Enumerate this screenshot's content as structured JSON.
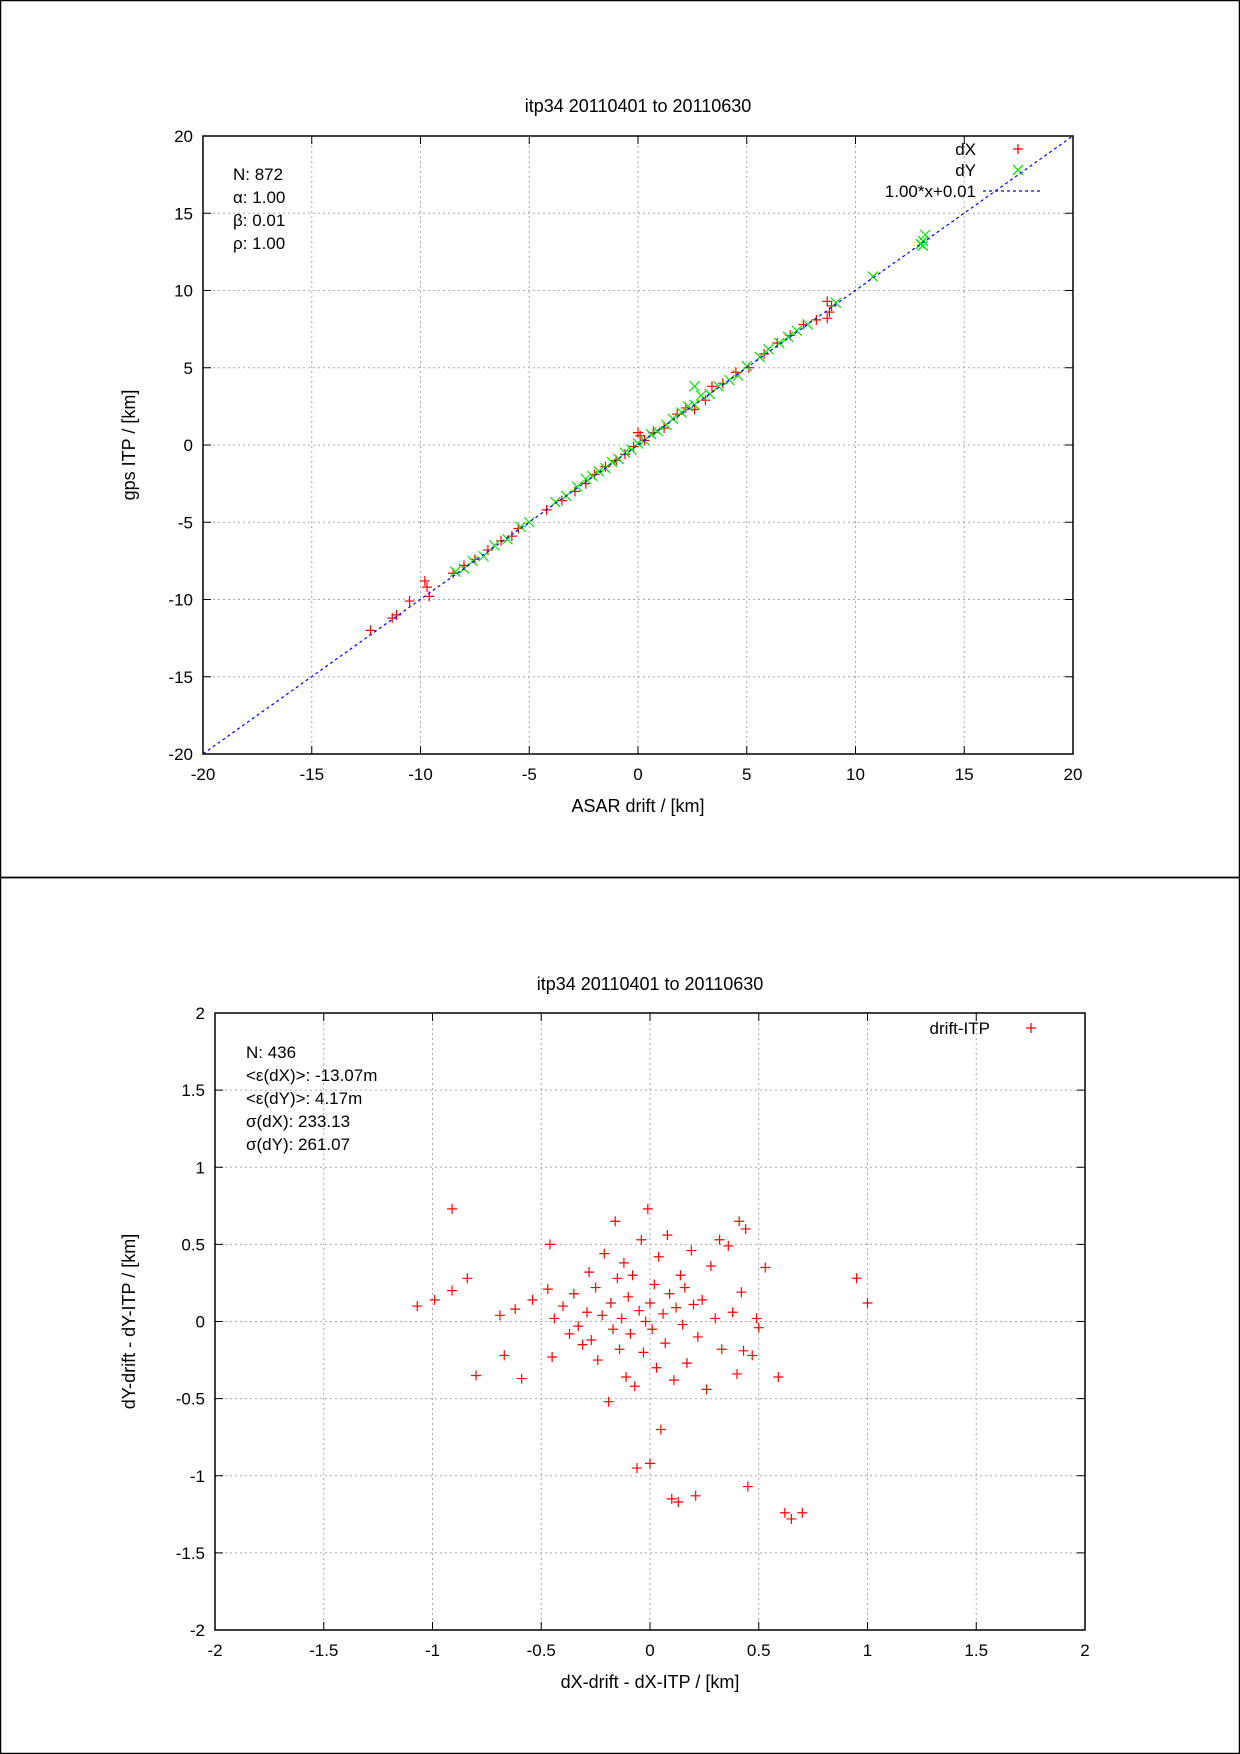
{
  "chart_data": [
    {
      "type": "scatter",
      "title": "itp34 20110401 to 20110630",
      "xlabel": "ASAR drift / [km]",
      "ylabel": "gps ITP / [km]",
      "xlim": [
        -20,
        20
      ],
      "ylim": [
        -20,
        20
      ],
      "xticks": [
        "-20",
        "-15",
        "-10",
        "-5",
        "0",
        "5",
        "10",
        "15",
        "20"
      ],
      "yticks": [
        "20",
        "15",
        "10",
        "5",
        "0",
        "-5",
        "-10",
        "-15",
        "-20"
      ],
      "grid": true,
      "legend_position": "top-right",
      "stats": [
        "N: 872",
        "α: 1.00",
        "β: 0.01",
        "ρ: 1.00"
      ],
      "series": [
        {
          "name": "dX",
          "marker": "+",
          "color": "#ff0000",
          "points": [
            [
              -12.3,
              -12.0
            ],
            [
              -11.3,
              -11.2
            ],
            [
              -11.1,
              -11.0
            ],
            [
              -10.5,
              -10.1
            ],
            [
              -9.8,
              -8.8
            ],
            [
              -9.7,
              -9.2
            ],
            [
              -9.6,
              -9.8
            ],
            [
              -8.5,
              -8.3
            ],
            [
              -8.0,
              -7.8
            ],
            [
              -7.5,
              -7.4
            ],
            [
              -6.9,
              -6.8
            ],
            [
              -6.3,
              -6.2
            ],
            [
              -5.8,
              -5.9
            ],
            [
              -5.5,
              -5.4
            ],
            [
              -4.2,
              -4.2
            ],
            [
              -3.5,
              -3.6
            ],
            [
              -2.9,
              -3.0
            ],
            [
              -2.4,
              -2.5
            ],
            [
              -2.0,
              -1.9
            ],
            [
              -1.5,
              -1.4
            ],
            [
              -1.0,
              -1.0
            ],
            [
              -0.6,
              -0.6
            ],
            [
              -0.2,
              -0.1
            ],
            [
              0.0,
              0.8
            ],
            [
              0.1,
              0.6
            ],
            [
              0.3,
              0.3
            ],
            [
              0.7,
              0.8
            ],
            [
              1.2,
              1.1
            ],
            [
              1.8,
              2.0
            ],
            [
              2.2,
              2.4
            ],
            [
              2.6,
              2.3
            ],
            [
              3.1,
              2.9
            ],
            [
              3.4,
              3.8
            ],
            [
              3.9,
              4.0
            ],
            [
              4.5,
              4.7
            ],
            [
              5.1,
              5.0
            ],
            [
              5.8,
              5.9
            ],
            [
              6.4,
              6.6
            ],
            [
              7.0,
              7.1
            ],
            [
              7.6,
              7.8
            ],
            [
              8.2,
              8.1
            ],
            [
              8.7,
              9.3
            ],
            [
              8.8,
              8.6
            ],
            [
              8.7,
              8.2
            ],
            [
              8.9,
              9.0
            ]
          ]
        },
        {
          "name": "dY",
          "marker": "x",
          "color": "#00e600",
          "points": [
            [
              -8.4,
              -8.2
            ],
            [
              -8.0,
              -8.0
            ],
            [
              -7.6,
              -7.5
            ],
            [
              -7.1,
              -7.2
            ],
            [
              -6.6,
              -6.5
            ],
            [
              -6.0,
              -6.1
            ],
            [
              -5.4,
              -5.3
            ],
            [
              -5.0,
              -5.0
            ],
            [
              -3.8,
              -3.7
            ],
            [
              -3.3,
              -3.3
            ],
            [
              -2.8,
              -2.7
            ],
            [
              -2.4,
              -2.2
            ],
            [
              -2.1,
              -2.0
            ],
            [
              -1.8,
              -1.7
            ],
            [
              -1.5,
              -1.5
            ],
            [
              -1.2,
              -1.1
            ],
            [
              -0.9,
              -0.9
            ],
            [
              -0.6,
              -0.5
            ],
            [
              -0.3,
              -0.3
            ],
            [
              0.0,
              0.1
            ],
            [
              0.3,
              0.3
            ],
            [
              0.6,
              0.7
            ],
            [
              0.9,
              0.9
            ],
            [
              1.3,
              1.3
            ],
            [
              1.6,
              1.7
            ],
            [
              2.0,
              2.1
            ],
            [
              2.3,
              2.5
            ],
            [
              2.6,
              3.8
            ],
            [
              2.6,
              2.6
            ],
            [
              2.9,
              3.2
            ],
            [
              3.3,
              3.3
            ],
            [
              3.7,
              3.8
            ],
            [
              4.2,
              4.2
            ],
            [
              4.6,
              4.5
            ],
            [
              5.0,
              5.1
            ],
            [
              5.6,
              5.7
            ],
            [
              6.0,
              6.2
            ],
            [
              6.5,
              6.6
            ],
            [
              6.9,
              7.0
            ],
            [
              7.3,
              7.4
            ],
            [
              7.8,
              7.8
            ],
            [
              9.1,
              9.2
            ],
            [
              10.8,
              10.9
            ],
            [
              13.0,
              13.0
            ],
            [
              13.1,
              13.2
            ],
            [
              13.2,
              13.6
            ],
            [
              13.1,
              12.9
            ]
          ]
        },
        {
          "name": "1.00*x+0.01",
          "type": "line",
          "style": "dashed",
          "color": "#0000ff",
          "x": [
            -20,
            20
          ],
          "y": [
            -19.99,
            20.01
          ]
        }
      ]
    },
    {
      "type": "scatter",
      "title": "itp34 20110401 to 20110630",
      "xlabel": "dX-drift - dX-ITP / [km]",
      "ylabel": "dY-drift - dY-ITP / [km]",
      "xlim": [
        -2,
        2
      ],
      "ylim": [
        -2,
        2
      ],
      "xticks": [
        "-2",
        "-1.5",
        "-1",
        "-0.5",
        "0",
        "0.5",
        "1",
        "1.5",
        "2"
      ],
      "yticks": [
        "2",
        "1.5",
        "1",
        "0.5",
        "0",
        "-0.5",
        "-1",
        "-1.5",
        "-2"
      ],
      "grid": true,
      "legend_position": "top-right",
      "stats": [
        "N: 436",
        "<ε(dX)>:  -13.07m",
        "<ε(dY)>: 4.17m",
        "σ(dX):  233.13",
        "σ(dY):  261.07"
      ],
      "series": [
        {
          "name": "drift-ITP",
          "marker": "+",
          "color": "#ff0000",
          "points": [
            [
              -1.07,
              0.1
            ],
            [
              -0.99,
              0.14
            ],
            [
              -0.91,
              0.73
            ],
            [
              -0.91,
              0.2
            ],
            [
              -0.84,
              0.28
            ],
            [
              -0.8,
              -0.35
            ],
            [
              -0.69,
              0.04
            ],
            [
              -0.67,
              -0.22
            ],
            [
              -0.62,
              0.08
            ],
            [
              -0.59,
              -0.37
            ],
            [
              -0.54,
              0.14
            ],
            [
              -0.47,
              0.21
            ],
            [
              -0.46,
              0.5
            ],
            [
              -0.45,
              -0.23
            ],
            [
              -0.44,
              0.02
            ],
            [
              -0.4,
              0.1
            ],
            [
              -0.37,
              -0.08
            ],
            [
              -0.35,
              0.18
            ],
            [
              -0.33,
              -0.03
            ],
            [
              -0.31,
              -0.15
            ],
            [
              -0.29,
              0.06
            ],
            [
              -0.28,
              0.32
            ],
            [
              -0.27,
              -0.12
            ],
            [
              -0.25,
              0.22
            ],
            [
              -0.24,
              -0.25
            ],
            [
              -0.22,
              0.04
            ],
            [
              -0.21,
              0.44
            ],
            [
              -0.19,
              -0.52
            ],
            [
              -0.18,
              0.12
            ],
            [
              -0.17,
              -0.05
            ],
            [
              -0.16,
              0.65
            ],
            [
              -0.15,
              0.28
            ],
            [
              -0.14,
              -0.18
            ],
            [
              -0.13,
              0.02
            ],
            [
              -0.12,
              0.38
            ],
            [
              -0.11,
              -0.36
            ],
            [
              -0.1,
              0.16
            ],
            [
              -0.09,
              -0.08
            ],
            [
              -0.08,
              0.3
            ],
            [
              -0.07,
              -0.42
            ],
            [
              -0.06,
              -0.95
            ],
            [
              -0.05,
              0.07
            ],
            [
              -0.04,
              0.53
            ],
            [
              -0.03,
              -0.2
            ],
            [
              -0.02,
              0.0
            ],
            [
              -0.01,
              0.73
            ],
            [
              0.0,
              -0.92
            ],
            [
              0.0,
              0.12
            ],
            [
              0.01,
              -0.05
            ],
            [
              0.02,
              0.24
            ],
            [
              0.03,
              -0.3
            ],
            [
              0.04,
              0.42
            ],
            [
              0.05,
              -0.7
            ],
            [
              0.06,
              0.05
            ],
            [
              0.07,
              -0.14
            ],
            [
              0.08,
              0.56
            ],
            [
              0.09,
              0.18
            ],
            [
              0.1,
              -1.15
            ],
            [
              0.11,
              -0.38
            ],
            [
              0.12,
              0.09
            ],
            [
              0.13,
              -1.17
            ],
            [
              0.14,
              0.3
            ],
            [
              0.15,
              -0.02
            ],
            [
              0.16,
              0.22
            ],
            [
              0.17,
              -0.27
            ],
            [
              0.19,
              0.46
            ],
            [
              0.2,
              0.11
            ],
            [
              0.21,
              -1.13
            ],
            [
              0.22,
              -0.1
            ],
            [
              0.24,
              0.14
            ],
            [
              0.26,
              -0.44
            ],
            [
              0.28,
              0.36
            ],
            [
              0.3,
              0.02
            ],
            [
              0.32,
              0.53
            ],
            [
              0.33,
              -0.18
            ],
            [
              0.36,
              0.49
            ],
            [
              0.38,
              0.06
            ],
            [
              0.4,
              -0.34
            ],
            [
              0.41,
              0.65
            ],
            [
              0.42,
              0.19
            ],
            [
              0.43,
              -0.19
            ],
            [
              0.44,
              0.6
            ],
            [
              0.45,
              -1.07
            ],
            [
              0.47,
              -0.22
            ],
            [
              0.49,
              0.02
            ],
            [
              0.5,
              -0.04
            ],
            [
              0.53,
              0.35
            ],
            [
              0.59,
              -0.36
            ],
            [
              0.62,
              -1.24
            ],
            [
              0.65,
              -1.28
            ],
            [
              0.7,
              -1.24
            ],
            [
              0.95,
              0.28
            ],
            [
              1.0,
              0.12
            ]
          ]
        }
      ]
    }
  ]
}
